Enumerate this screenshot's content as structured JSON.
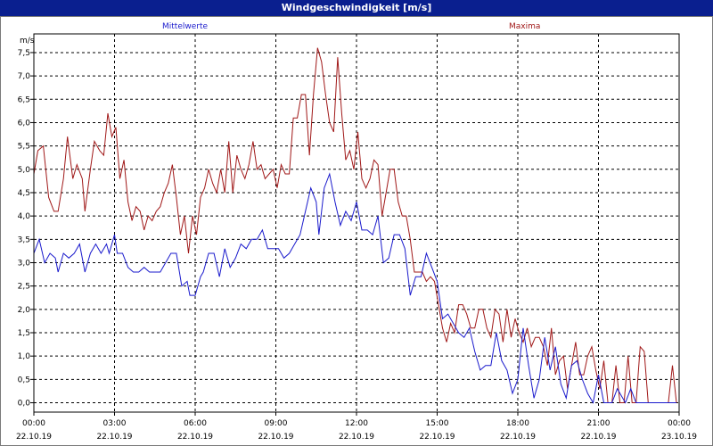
{
  "window": {
    "title": "Windgeschwindigkeit [m/s]"
  },
  "colors": {
    "mean": "#1a1acc",
    "max": "#a01818",
    "grid": "#000000",
    "title_bg": "#0a1f8f"
  },
  "chart_data": {
    "type": "line",
    "ylabel": "m/s",
    "ylim": [
      -0.2,
      7.9
    ],
    "y_ticks": [
      "7,5",
      "7,0",
      "6,5",
      "6,0",
      "5,5",
      "5,0",
      "4,5",
      "4,0",
      "3,5",
      "3,0",
      "2,5",
      "2,0",
      "1,5",
      "1,0",
      "0,5",
      "0,0"
    ],
    "y_tick_values": [
      7.5,
      7.0,
      6.5,
      6.0,
      5.5,
      5.0,
      4.5,
      4.0,
      3.5,
      3.0,
      2.5,
      2.0,
      1.5,
      1.0,
      0.5,
      0.0
    ],
    "x_unit_hours_range": [
      0,
      24
    ],
    "x_ticks": [
      {
        "time": "00:00",
        "date": "22.10.19"
      },
      {
        "time": "03:00",
        "date": "22.10.19"
      },
      {
        "time": "06:00",
        "date": "22.10.19"
      },
      {
        "time": "09:00",
        "date": "22.10.19"
      },
      {
        "time": "12:00",
        "date": "22.10.19"
      },
      {
        "time": "15:00",
        "date": "22.10.19"
      },
      {
        "time": "18:00",
        "date": "22.10.19"
      },
      {
        "time": "21:00",
        "date": "22.10.19"
      },
      {
        "time": "00:00",
        "date": "23.10.19"
      }
    ],
    "series": [
      {
        "name": "Mittelwerte",
        "color": "#1a1acc",
        "values": [
          [
            0.0,
            3.2
          ],
          [
            0.2,
            3.5
          ],
          [
            0.4,
            3.0
          ],
          [
            0.6,
            3.2
          ],
          [
            0.8,
            3.1
          ],
          [
            0.9,
            2.8
          ],
          [
            1.1,
            3.2
          ],
          [
            1.3,
            3.1
          ],
          [
            1.5,
            3.2
          ],
          [
            1.7,
            3.4
          ],
          [
            1.9,
            2.8
          ],
          [
            2.1,
            3.2
          ],
          [
            2.3,
            3.4
          ],
          [
            2.5,
            3.2
          ],
          [
            2.7,
            3.4
          ],
          [
            2.8,
            3.2
          ],
          [
            3.0,
            3.6
          ],
          [
            3.1,
            3.2
          ],
          [
            3.3,
            3.2
          ],
          [
            3.5,
            2.9
          ],
          [
            3.7,
            2.8
          ],
          [
            3.9,
            2.8
          ],
          [
            4.1,
            2.9
          ],
          [
            4.3,
            2.8
          ],
          [
            4.5,
            2.8
          ],
          [
            4.7,
            2.8
          ],
          [
            4.9,
            3.0
          ],
          [
            5.1,
            3.2
          ],
          [
            5.3,
            3.2
          ],
          [
            5.5,
            2.5
          ],
          [
            5.7,
            2.6
          ],
          [
            5.8,
            2.3
          ],
          [
            6.0,
            2.3
          ],
          [
            6.2,
            2.7
          ],
          [
            6.3,
            2.8
          ],
          [
            6.5,
            3.2
          ],
          [
            6.7,
            3.2
          ],
          [
            6.9,
            2.7
          ],
          [
            7.1,
            3.3
          ],
          [
            7.3,
            2.9
          ],
          [
            7.5,
            3.1
          ],
          [
            7.7,
            3.4
          ],
          [
            7.9,
            3.3
          ],
          [
            8.1,
            3.5
          ],
          [
            8.3,
            3.5
          ],
          [
            8.5,
            3.7
          ],
          [
            8.7,
            3.3
          ],
          [
            8.9,
            3.3
          ],
          [
            9.1,
            3.3
          ],
          [
            9.3,
            3.1
          ],
          [
            9.5,
            3.2
          ],
          [
            9.7,
            3.4
          ],
          [
            9.9,
            3.6
          ],
          [
            10.1,
            4.1
          ],
          [
            10.3,
            4.6
          ],
          [
            10.5,
            4.3
          ],
          [
            10.6,
            3.6
          ],
          [
            10.8,
            4.6
          ],
          [
            11.0,
            4.9
          ],
          [
            11.2,
            4.3
          ],
          [
            11.4,
            3.8
          ],
          [
            11.6,
            4.1
          ],
          [
            11.8,
            3.9
          ],
          [
            12.0,
            4.3
          ],
          [
            12.2,
            3.7
          ],
          [
            12.4,
            3.7
          ],
          [
            12.6,
            3.6
          ],
          [
            12.8,
            4.0
          ],
          [
            13.0,
            3.0
          ],
          [
            13.2,
            3.1
          ],
          [
            13.4,
            3.6
          ],
          [
            13.6,
            3.6
          ],
          [
            13.8,
            3.3
          ],
          [
            14.0,
            2.3
          ],
          [
            14.2,
            2.7
          ],
          [
            14.4,
            2.7
          ],
          [
            14.6,
            3.2
          ],
          [
            14.8,
            2.9
          ],
          [
            15.0,
            2.6
          ],
          [
            15.2,
            1.8
          ],
          [
            15.4,
            1.9
          ],
          [
            15.6,
            1.7
          ],
          [
            15.8,
            1.5
          ],
          [
            16.0,
            1.4
          ],
          [
            16.2,
            1.6
          ],
          [
            16.4,
            1.1
          ],
          [
            16.6,
            0.7
          ],
          [
            16.8,
            0.8
          ],
          [
            17.0,
            0.8
          ],
          [
            17.2,
            1.5
          ],
          [
            17.4,
            0.9
          ],
          [
            17.6,
            0.7
          ],
          [
            17.8,
            0.2
          ],
          [
            18.0,
            0.5
          ],
          [
            18.2,
            1.6
          ],
          [
            18.4,
            0.8
          ],
          [
            18.6,
            0.1
          ],
          [
            18.8,
            0.5
          ],
          [
            19.0,
            1.4
          ],
          [
            19.2,
            0.7
          ],
          [
            19.4,
            1.2
          ],
          [
            19.6,
            0.4
          ],
          [
            19.8,
            0.1
          ],
          [
            20.0,
            0.8
          ],
          [
            20.2,
            0.9
          ],
          [
            20.4,
            0.5
          ],
          [
            20.6,
            0.2
          ],
          [
            20.8,
            0.0
          ],
          [
            21.0,
            0.6
          ],
          [
            21.2,
            0.0
          ],
          [
            21.5,
            0.0
          ],
          [
            21.7,
            0.3
          ],
          [
            22.0,
            0.0
          ],
          [
            22.2,
            0.3
          ],
          [
            22.4,
            0.0
          ],
          [
            22.6,
            0.0
          ],
          [
            22.8,
            0.0
          ],
          [
            23.0,
            0.0
          ],
          [
            23.5,
            0.0
          ],
          [
            23.9,
            0.0
          ]
        ]
      },
      {
        "name": "Maxima",
        "color": "#a01818",
        "values": [
          [
            0.0,
            4.9
          ],
          [
            0.15,
            5.4
          ],
          [
            0.35,
            5.5
          ],
          [
            0.55,
            4.4
          ],
          [
            0.75,
            4.1
          ],
          [
            0.9,
            4.1
          ],
          [
            1.1,
            4.8
          ],
          [
            1.25,
            5.7
          ],
          [
            1.45,
            4.8
          ],
          [
            1.6,
            5.1
          ],
          [
            1.8,
            4.8
          ],
          [
            1.9,
            4.1
          ],
          [
            2.1,
            5.0
          ],
          [
            2.25,
            5.6
          ],
          [
            2.45,
            5.4
          ],
          [
            2.6,
            5.3
          ],
          [
            2.75,
            6.2
          ],
          [
            2.9,
            5.7
          ],
          [
            3.05,
            5.9
          ],
          [
            3.2,
            4.8
          ],
          [
            3.35,
            5.2
          ],
          [
            3.5,
            4.3
          ],
          [
            3.65,
            3.9
          ],
          [
            3.8,
            4.2
          ],
          [
            3.95,
            4.1
          ],
          [
            4.1,
            3.7
          ],
          [
            4.25,
            4.0
          ],
          [
            4.4,
            3.9
          ],
          [
            4.55,
            4.1
          ],
          [
            4.7,
            4.2
          ],
          [
            4.85,
            4.5
          ],
          [
            5.0,
            4.7
          ],
          [
            5.15,
            5.1
          ],
          [
            5.3,
            4.4
          ],
          [
            5.45,
            3.6
          ],
          [
            5.6,
            4.0
          ],
          [
            5.75,
            3.2
          ],
          [
            5.9,
            4.0
          ],
          [
            6.05,
            3.6
          ],
          [
            6.2,
            4.4
          ],
          [
            6.35,
            4.6
          ],
          [
            6.5,
            5.0
          ],
          [
            6.65,
            4.7
          ],
          [
            6.8,
            4.5
          ],
          [
            6.95,
            5.0
          ],
          [
            7.1,
            4.5
          ],
          [
            7.25,
            5.6
          ],
          [
            7.4,
            4.5
          ],
          [
            7.55,
            5.3
          ],
          [
            7.7,
            5.0
          ],
          [
            7.85,
            4.8
          ],
          [
            8.0,
            5.1
          ],
          [
            8.15,
            5.6
          ],
          [
            8.3,
            5.0
          ],
          [
            8.45,
            5.1
          ],
          [
            8.6,
            4.8
          ],
          [
            8.75,
            4.9
          ],
          [
            8.9,
            5.0
          ],
          [
            9.05,
            4.6
          ],
          [
            9.2,
            5.1
          ],
          [
            9.35,
            4.9
          ],
          [
            9.5,
            4.9
          ],
          [
            9.65,
            6.1
          ],
          [
            9.8,
            6.1
          ],
          [
            9.95,
            6.6
          ],
          [
            10.1,
            6.6
          ],
          [
            10.25,
            5.3
          ],
          [
            10.4,
            6.6
          ],
          [
            10.55,
            7.6
          ],
          [
            10.7,
            7.3
          ],
          [
            10.85,
            6.6
          ],
          [
            11.0,
            6.0
          ],
          [
            11.15,
            5.8
          ],
          [
            11.3,
            7.4
          ],
          [
            11.45,
            6.2
          ],
          [
            11.6,
            5.2
          ],
          [
            11.75,
            5.4
          ],
          [
            11.9,
            5.0
          ],
          [
            12.05,
            5.8
          ],
          [
            12.2,
            4.8
          ],
          [
            12.35,
            4.6
          ],
          [
            12.5,
            4.8
          ],
          [
            12.65,
            5.2
          ],
          [
            12.8,
            5.1
          ],
          [
            12.95,
            4.0
          ],
          [
            13.1,
            4.5
          ],
          [
            13.25,
            5.0
          ],
          [
            13.4,
            5.0
          ],
          [
            13.55,
            4.3
          ],
          [
            13.7,
            4.0
          ],
          [
            13.85,
            4.0
          ],
          [
            14.0,
            3.5
          ],
          [
            14.15,
            2.8
          ],
          [
            14.3,
            2.8
          ],
          [
            14.45,
            2.8
          ],
          [
            14.6,
            2.6
          ],
          [
            14.75,
            2.7
          ],
          [
            14.9,
            2.6
          ],
          [
            15.05,
            2.1
          ],
          [
            15.2,
            1.6
          ],
          [
            15.35,
            1.3
          ],
          [
            15.5,
            1.7
          ],
          [
            15.65,
            1.5
          ],
          [
            15.8,
            2.1
          ],
          [
            15.95,
            2.1
          ],
          [
            16.1,
            1.9
          ],
          [
            16.25,
            1.6
          ],
          [
            16.4,
            1.6
          ],
          [
            16.55,
            2.0
          ],
          [
            16.7,
            2.0
          ],
          [
            16.85,
            1.6
          ],
          [
            17.0,
            1.4
          ],
          [
            17.15,
            2.0
          ],
          [
            17.3,
            1.9
          ],
          [
            17.45,
            1.3
          ],
          [
            17.6,
            2.0
          ],
          [
            17.75,
            1.4
          ],
          [
            17.9,
            1.8
          ],
          [
            18.05,
            1.5
          ],
          [
            18.2,
            1.3
          ],
          [
            18.35,
            1.6
          ],
          [
            18.5,
            1.2
          ],
          [
            18.65,
            1.4
          ],
          [
            18.8,
            1.4
          ],
          [
            18.95,
            1.2
          ],
          [
            19.1,
            0.8
          ],
          [
            19.25,
            1.6
          ],
          [
            19.4,
            0.6
          ],
          [
            19.55,
            0.9
          ],
          [
            19.7,
            1.0
          ],
          [
            19.85,
            0.3
          ],
          [
            20.0,
            0.8
          ],
          [
            20.15,
            1.3
          ],
          [
            20.3,
            0.6
          ],
          [
            20.45,
            0.6
          ],
          [
            20.6,
            1.0
          ],
          [
            20.75,
            1.2
          ],
          [
            20.9,
            0.7
          ],
          [
            21.05,
            0.3
          ],
          [
            21.2,
            0.9
          ],
          [
            21.35,
            0.0
          ],
          [
            21.5,
            0.0
          ],
          [
            21.65,
            0.8
          ],
          [
            21.8,
            0.0
          ],
          [
            21.95,
            0.0
          ],
          [
            22.1,
            1.0
          ],
          [
            22.25,
            0.0
          ],
          [
            22.4,
            0.0
          ],
          [
            22.55,
            1.2
          ],
          [
            22.7,
            1.1
          ],
          [
            22.85,
            0.0
          ],
          [
            23.0,
            0.0
          ],
          [
            23.3,
            0.0
          ],
          [
            23.6,
            0.0
          ],
          [
            23.75,
            0.8
          ],
          [
            23.9,
            0.0
          ]
        ]
      }
    ]
  }
}
